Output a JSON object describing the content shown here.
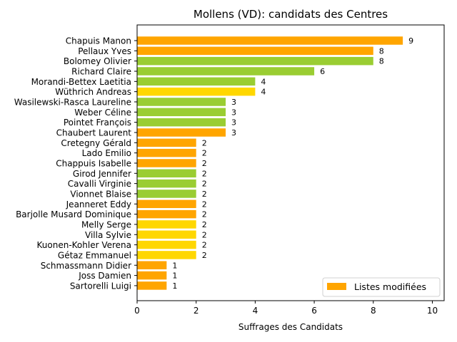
{
  "chart_data": {
    "type": "bar",
    "orientation": "horizontal",
    "title": "Mollens (VD): candidats des Centres",
    "xlabel": "Suffrages des Candidats",
    "ylabel": "",
    "xlim": [
      0,
      10.4
    ],
    "xticks": [
      0,
      2,
      4,
      6,
      8,
      10
    ],
    "grid": false,
    "legend": {
      "placement": "bottom-right",
      "entries": [
        {
          "label": "Listes modifiées",
          "color": "#ffa500"
        }
      ]
    },
    "colors": {
      "orange": "#ffa500",
      "green": "#9acd32",
      "yellow": "#ffd700"
    },
    "categories": [
      "Chapuis Manon",
      "Pellaux Yves",
      "Bolomey Olivier",
      "Richard Claire",
      "Morandi-Bettex Laetitia",
      "Wüthrich Andreas",
      "Wasilewski-Rasca Laureline",
      "Weber Céline",
      "Pointet François",
      "Chaubert Laurent",
      "Cretegny Gérald",
      "Lado Emilio",
      "Chappuis Isabelle",
      "Girod Jennifer",
      "Cavalli Virginie",
      "Vionnet Blaise",
      "Jeanneret Eddy",
      "Barjolle Musard Dominique",
      "Melly Serge",
      "Villa Sylvie",
      "Kuonen-Kohler Verena",
      "Gétaz Emmanuel",
      "Schmassmann Didier",
      "Joss Damien",
      "Sartorelli Luigi"
    ],
    "values": [
      9,
      8,
      8,
      6,
      4,
      4,
      3,
      3,
      3,
      3,
      2,
      2,
      2,
      2,
      2,
      2,
      2,
      2,
      2,
      2,
      2,
      2,
      1,
      1,
      1
    ],
    "bar_colors": [
      "#ffa500",
      "#ffa500",
      "#9acd32",
      "#9acd32",
      "#9acd32",
      "#ffd700",
      "#9acd32",
      "#9acd32",
      "#9acd32",
      "#ffa500",
      "#ffa500",
      "#ffa500",
      "#ffa500",
      "#9acd32",
      "#9acd32",
      "#9acd32",
      "#ffa500",
      "#ffa500",
      "#ffd700",
      "#ffd700",
      "#ffd700",
      "#ffd700",
      "#ffa500",
      "#ffa500",
      "#ffa500"
    ]
  }
}
